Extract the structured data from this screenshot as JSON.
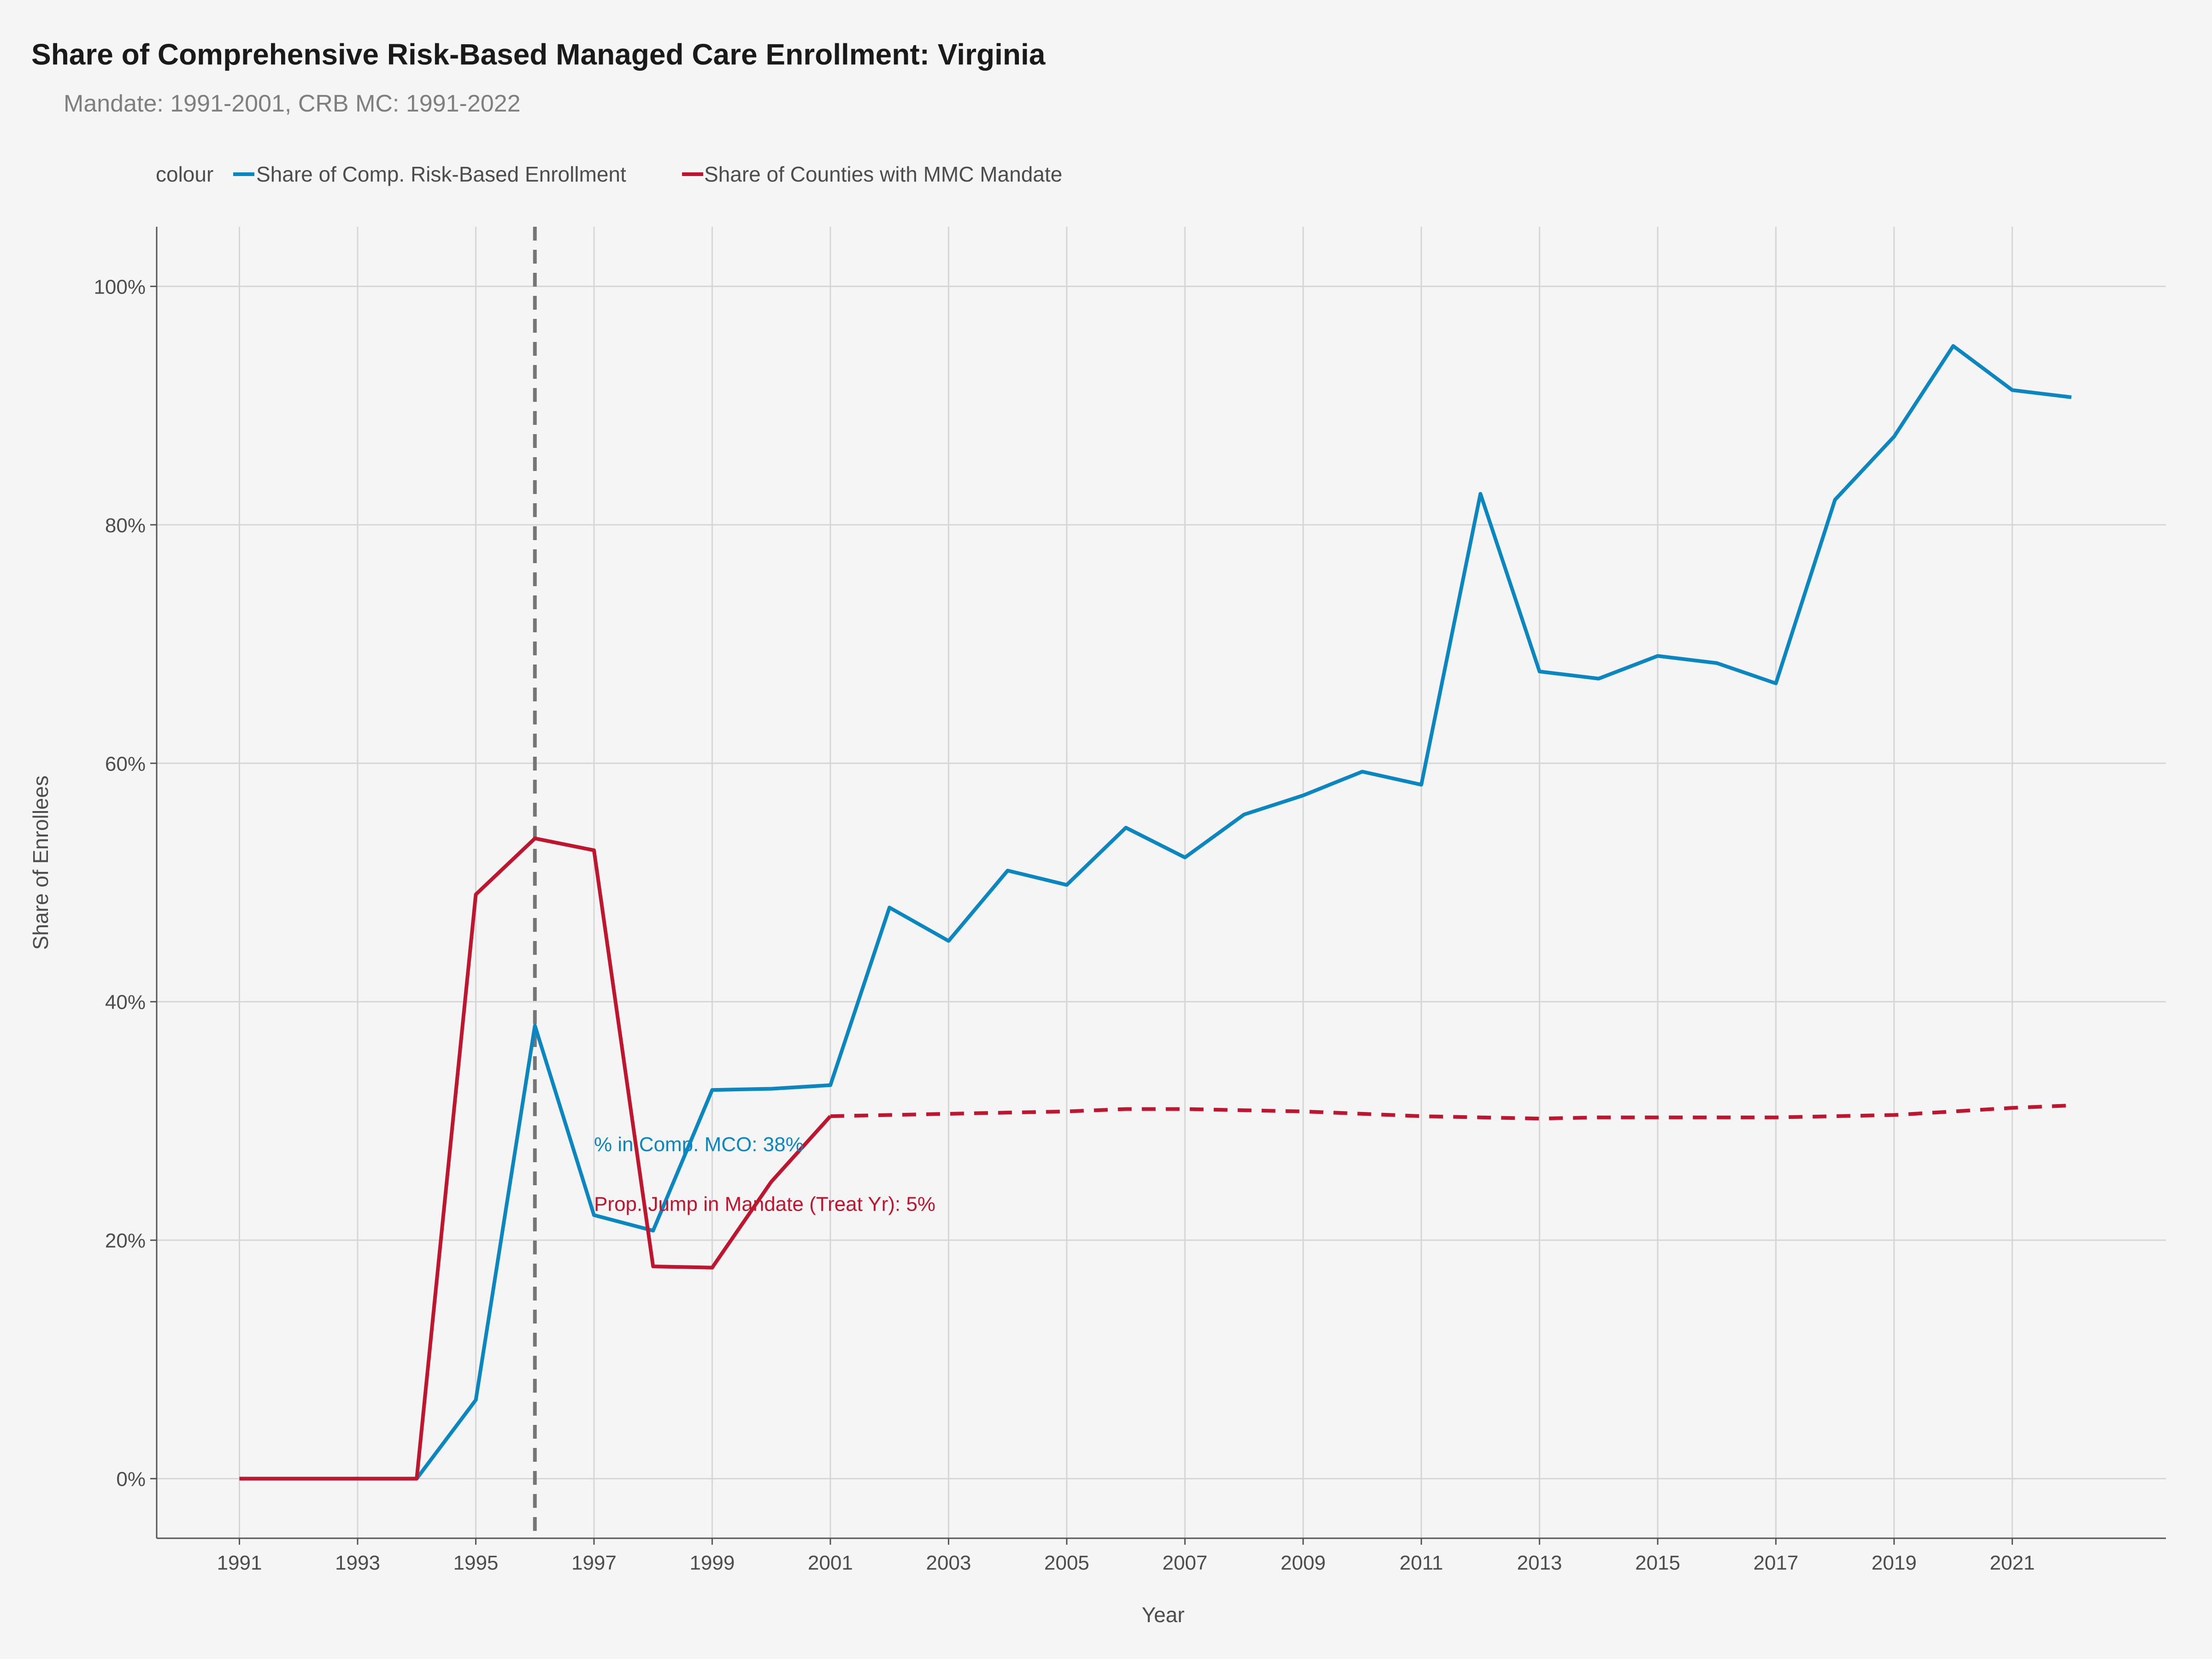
{
  "chart_data": {
    "type": "line",
    "title": "Share of Comprehensive Risk-Based Managed Care Enrollment: Virginia",
    "subtitle": "Mandate: 1991-2001, CRB MC: 1991-2022",
    "xlabel": "Year",
    "ylabel": "Share of Enrollees",
    "xlim": [
      1989.6,
      2023.6
    ],
    "ylim": [
      -0.05,
      1.05
    ],
    "x_ticks": [
      1991,
      1993,
      1995,
      1997,
      1999,
      2001,
      2003,
      2005,
      2007,
      2009,
      2011,
      2013,
      2015,
      2017,
      2019,
      2021
    ],
    "x_tick_labels": [
      "1991",
      "1993",
      "1995",
      "1997",
      "1999",
      "2001",
      "2003",
      "2005",
      "2007",
      "2009",
      "2011",
      "2013",
      "2015",
      "2017",
      "2019",
      "2021"
    ],
    "y_ticks": [
      0,
      0.2,
      0.4,
      0.6,
      0.8,
      1.0
    ],
    "y_tick_labels": [
      "0%",
      "20%",
      "40%",
      "60%",
      "80%",
      "100%"
    ],
    "grid": true,
    "legend": {
      "title": "colour",
      "position": "top-left",
      "entries": [
        {
          "label": "Share of Comp. Risk-Based Enrollment",
          "color": "#0a86c0"
        },
        {
          "label": "Share of Counties with MMC Mandate",
          "color": "#c0152e"
        }
      ]
    },
    "vline": {
      "x": 1996,
      "color": "#757575",
      "style": "dashed"
    },
    "series": [
      {
        "name": "Share of Comp. Risk-Based Enrollment",
        "color": "#0a86c0",
        "style": "solid",
        "x": [
          1991,
          1992,
          1993,
          1994,
          1995,
          1996,
          1997,
          1998,
          1999,
          2000,
          2001,
          2002,
          2003,
          2004,
          2005,
          2006,
          2007,
          2008,
          2009,
          2010,
          2011,
          2012,
          2013,
          2014,
          2015,
          2016,
          2017,
          2018,
          2019,
          2020,
          2021,
          2022
        ],
        "values": [
          0,
          0,
          0,
          0,
          0.066,
          0.38,
          0.221,
          0.208,
          0.326,
          0.327,
          0.33,
          0.479,
          0.451,
          0.51,
          0.498,
          0.546,
          0.521,
          0.557,
          0.573,
          0.593,
          0.582,
          0.826,
          0.677,
          0.671,
          0.69,
          0.684,
          0.667,
          0.821,
          0.874,
          0.95,
          0.913,
          0.907
        ]
      },
      {
        "name": "Share of Counties with MMC Mandate",
        "color": "#c0152e",
        "style": "solid",
        "x": [
          1991,
          1992,
          1993,
          1994,
          1995,
          1996,
          1997,
          1998,
          1999,
          2000,
          2001
        ],
        "values": [
          0,
          0,
          0,
          0,
          0.49,
          0.537,
          0.527,
          0.178,
          0.177,
          0.249,
          0.304
        ]
      },
      {
        "name": "",
        "color": "#c0152e",
        "style": "dashed",
        "x": [
          2001,
          2002,
          2003,
          2004,
          2005,
          2006,
          2007,
          2008,
          2009,
          2010,
          2011,
          2012,
          2013,
          2014,
          2015,
          2016,
          2017,
          2018,
          2019,
          2020,
          2021,
          2022
        ],
        "values": [
          0.304,
          0.305,
          0.306,
          0.307,
          0.308,
          0.31,
          0.31,
          0.309,
          0.308,
          0.306,
          0.304,
          0.303,
          0.302,
          0.303,
          0.303,
          0.303,
          0.303,
          0.304,
          0.305,
          0.308,
          0.311,
          0.313
        ]
      }
    ],
    "annotations": [
      {
        "text": "% in Comp. MCO: 38%",
        "x": 1997,
        "y": 0.28,
        "color": "#0a86c0"
      },
      {
        "text": "Prop. Jump in Mandate (Treat Yr): 5%",
        "x": 1997,
        "y": 0.23,
        "color": "#c0152e"
      }
    ]
  }
}
